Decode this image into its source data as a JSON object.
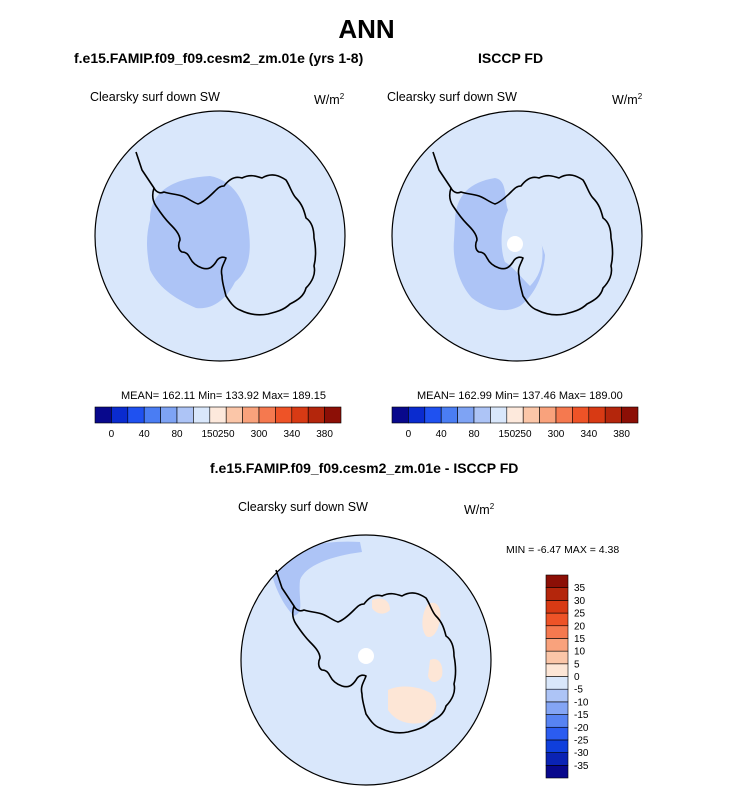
{
  "main_title": "ANN",
  "panels": [
    {
      "title": "f.e15.FAMIP.f09_f09.cesm2_zm.01e (yrs 1-8)",
      "variable": "Clearsky surf down SW",
      "units_base": "W/m",
      "units_exp": "2",
      "stats": "MEAN= 162.11  Min= 133.92  Max= 189.15"
    },
    {
      "title": "ISCCP FD",
      "variable": "Clearsky surf down SW",
      "units_base": "W/m",
      "units_exp": "2",
      "stats": "MEAN= 162.99  Min= 137.46  Max= 189.00"
    },
    {
      "title": "f.e15.FAMIP.f09_f09.cesm2_zm.01e - ISCCP FD",
      "variable": "Clearsky surf down SW",
      "units_base": "W/m",
      "units_exp": "2",
      "stats": "MIN =  -6.47 MAX =   4.38"
    }
  ],
  "chart_data": [
    {
      "type": "heatmap",
      "projection": "south polar stereographic",
      "title": "f.e15.FAMIP.f09_f09.cesm2_zm.01e (yrs 1-8)",
      "variable": "Clearsky surf down SW",
      "units": "W/m2",
      "mean": 162.11,
      "min": 133.92,
      "max": 189.15,
      "colorbar_orientation": "horizontal",
      "colorbar_levels": [
        0,
        40,
        80,
        150,
        250,
        300,
        340,
        380
      ],
      "colorbar_colors": [
        "#08088c",
        "#0a2bcf",
        "#1f51f0",
        "#4a7df3",
        "#7ea3f4",
        "#adc4f6",
        "#d9e7fb",
        "#fde9dc",
        "#fbc6a8",
        "#f9a27c",
        "#f5794f",
        "#ee5327",
        "#d83a14",
        "#b4260c",
        "#8c0f06"
      ],
      "regions": [
        {
          "name": "Southern Ocean / coastal",
          "color": "#d9e7fb"
        },
        {
          "name": "West Antarctica and Ross region",
          "color": "#adc4f6"
        }
      ]
    },
    {
      "type": "heatmap",
      "projection": "south polar stereographic",
      "title": "ISCCP FD",
      "variable": "Clearsky surf down SW",
      "units": "W/m2",
      "mean": 162.99,
      "min": 137.46,
      "max": 189.0,
      "colorbar_orientation": "horizontal",
      "colorbar_levels": [
        0,
        40,
        80,
        150,
        250,
        300,
        340,
        380
      ],
      "colorbar_colors": [
        "#08088c",
        "#0a2bcf",
        "#1f51f0",
        "#4a7df3",
        "#7ea3f4",
        "#adc4f6",
        "#d9e7fb",
        "#fde9dc",
        "#fbc6a8",
        "#f9a27c",
        "#f5794f",
        "#ee5327",
        "#d83a14",
        "#b4260c",
        "#8c0f06"
      ],
      "regions": [
        {
          "name": "Southern Ocean / coastal",
          "color": "#d9e7fb"
        },
        {
          "name": "West Antarctica and Ross region",
          "color": "#adc4f6"
        },
        {
          "name": "Pole (missing)",
          "color": "#ffffff"
        }
      ]
    },
    {
      "type": "heatmap",
      "projection": "south polar stereographic",
      "title": "f.e15.FAMIP.f09_f09.cesm2_zm.01e - ISCCP FD",
      "variable": "Clearsky surf down SW",
      "units": "W/m2",
      "min": -6.47,
      "max": 4.38,
      "colorbar_orientation": "vertical",
      "colorbar_levels": [
        -35,
        -30,
        -25,
        -20,
        -15,
        -10,
        -5,
        0,
        5,
        10,
        15,
        20,
        25,
        30,
        35
      ],
      "colorbar_colors": [
        "#08088c",
        "#0a23b4",
        "#0f3fdc",
        "#2b5cf0",
        "#5783f2",
        "#84a5f4",
        "#adc4f6",
        "#d9e7fb",
        "#fde6d6",
        "#fbc6a8",
        "#f9a27c",
        "#f5794f",
        "#ee5327",
        "#d83a14",
        "#b4260c",
        "#8c0f06"
      ],
      "regions": [
        {
          "name": "most of domain",
          "color": "#d9e7fb"
        },
        {
          "name": "Antarctic Peninsula region",
          "color": "#adc4f6"
        },
        {
          "name": "East Antarctica coastal patches",
          "color": "#fde6d6"
        },
        {
          "name": "Pole (missing)",
          "color": "#ffffff"
        }
      ]
    }
  ]
}
